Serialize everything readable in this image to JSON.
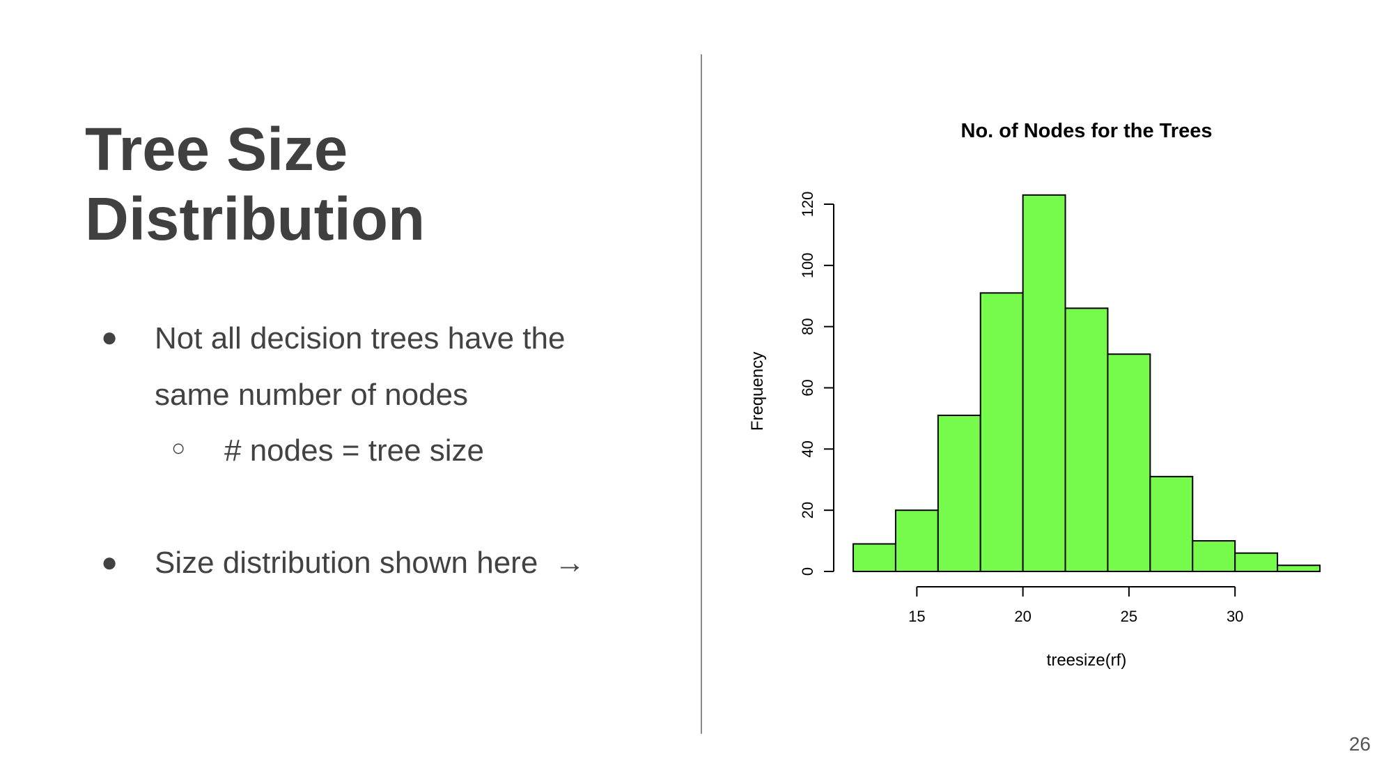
{
  "slide": {
    "title_line1": "Tree Size",
    "title_line2": "Distribution",
    "bullet1_line1": "Not all decision trees have the",
    "bullet1_line2": "same number of nodes",
    "sub_bullet": "# nodes = tree size",
    "bullet2": "Size distribution shown here",
    "arrow": "→",
    "page_number": "26"
  },
  "chart_data": {
    "type": "bar",
    "title": "No. of Nodes for the Trees",
    "xlabel": "treesize(rf)",
    "ylabel": "Frequency",
    "bin_edges": [
      12,
      14,
      16,
      18,
      20,
      22,
      24,
      26,
      28,
      30,
      32,
      34
    ],
    "values": [
      9,
      20,
      51,
      91,
      123,
      86,
      71,
      31,
      10,
      6,
      2
    ],
    "xlim": [
      12,
      34
    ],
    "xticks": [
      15,
      20,
      25,
      30
    ],
    "ylim": [
      0,
      120
    ],
    "yticks": [
      0,
      20,
      40,
      60,
      80,
      100,
      120
    ],
    "bar_color": "#76fa4c",
    "grid": false,
    "legend": "none"
  }
}
